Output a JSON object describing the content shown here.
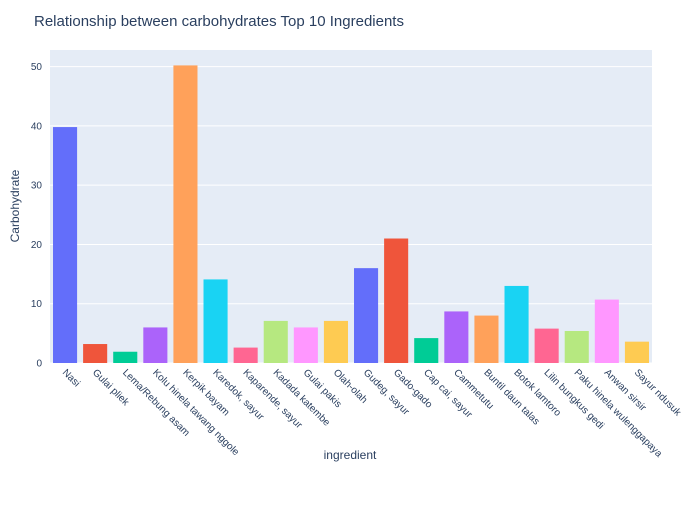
{
  "chart_data": {
    "type": "bar",
    "title": "Relationship between carbohydrates Top 10 Ingredients",
    "xlabel": "ingredient",
    "ylabel": "Carbohydrate",
    "ylim": [
      0,
      52.8
    ],
    "yticks": [
      0,
      10,
      20,
      30,
      40,
      50
    ],
    "grid": true,
    "categories": [
      "Nasi",
      "Gulai pliek",
      "Lema/Rebung asam",
      "Kolu hinela tawang nggole",
      "Kerpik bayam",
      "Karedok, sayur",
      "Kaparende, sayur",
      "Kadada katembe",
      "Gulai pakis",
      "Olah-olah",
      "Gudeg, sayur",
      "Gado-gado",
      "Cap cai, sayur",
      "Cammetutu",
      "Buntil daun talas",
      "Botok lamtoro",
      "Lilin bungkus gedi",
      "Paku hinela wulenggapaya",
      "Anwan sirsir",
      "Sayur ndusuk"
    ],
    "values": [
      39.8,
      3.2,
      1.9,
      6.0,
      50.2,
      14.1,
      2.6,
      7.1,
      6.0,
      7.1,
      16.0,
      21.0,
      4.2,
      8.7,
      8.0,
      13.0,
      5.8,
      5.4,
      10.7,
      3.6
    ],
    "colors": [
      "#636efa",
      "#EF553B",
      "#00cc96",
      "#ab63fa",
      "#FFA15A",
      "#19d3f3",
      "#FF6692",
      "#B6E880",
      "#FF97FF",
      "#FECB52",
      "#636efa",
      "#EF553B",
      "#00cc96",
      "#ab63fa",
      "#FFA15A",
      "#19d3f3",
      "#FF6692",
      "#B6E880",
      "#FF97FF",
      "#FECB52"
    ]
  },
  "theme": {
    "plot_bg": "#E5ECF6",
    "grid_color": "#ffffff",
    "text_color": "#2a3f5f"
  }
}
